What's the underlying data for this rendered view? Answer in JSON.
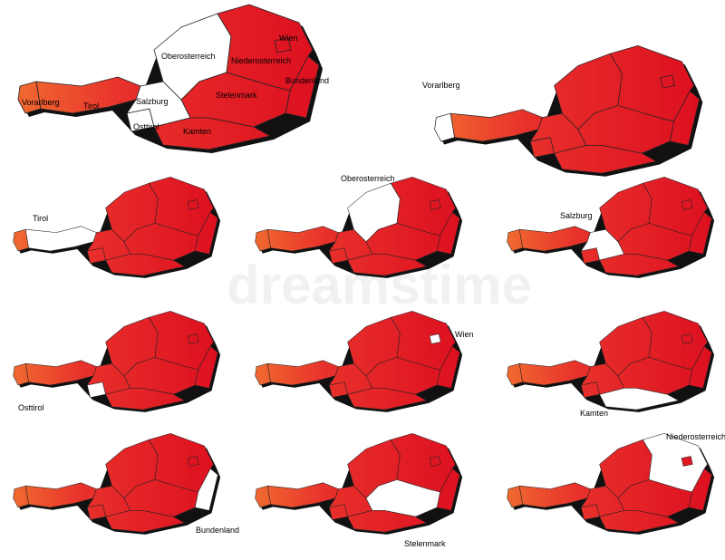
{
  "main_map": {
    "labels": [
      "Wien",
      "Oberosterreich",
      "Niederosterreich",
      "Bundenland",
      "Vorarlberg",
      "Tirol",
      "Salzburg",
      "Stelenmark",
      "Osttirol",
      "Kamten"
    ]
  },
  "small_maps": [
    {
      "label": "Vorarlberg"
    },
    {
      "label": "Tirol"
    },
    {
      "label": "Oberosterreich"
    },
    {
      "label": "Salzburg"
    },
    {
      "label": "Osttirol"
    },
    {
      "label": "Wien"
    },
    {
      "label": "Kamten"
    },
    {
      "label": "Bundenland"
    },
    {
      "label": "Stelenmark"
    },
    {
      "label": "Niederosterreich"
    }
  ],
  "watermark": "dreamstime"
}
